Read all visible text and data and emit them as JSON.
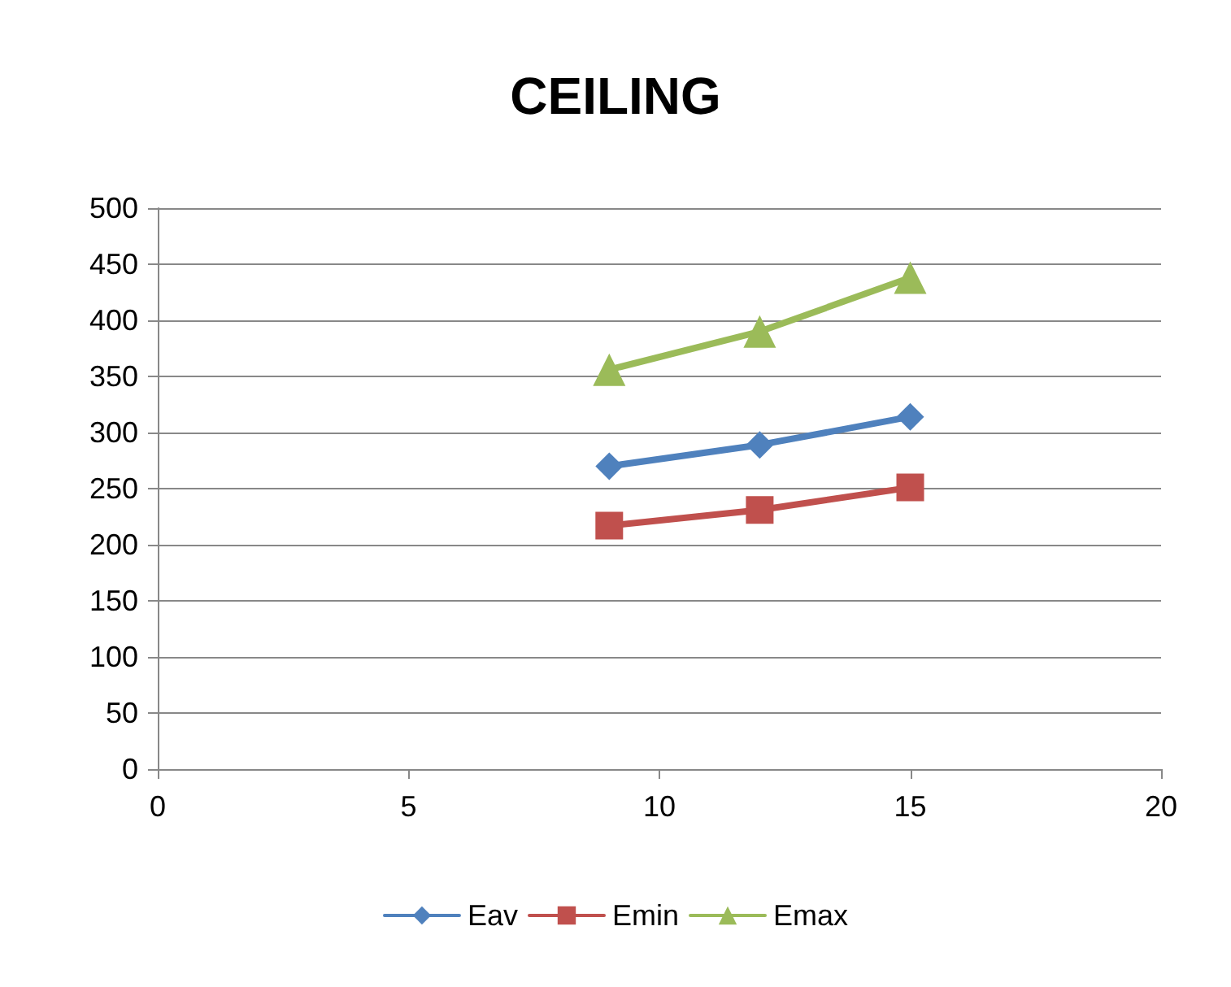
{
  "chart_data": {
    "type": "line",
    "title": "CEILING",
    "xlim": [
      0,
      20
    ],
    "xticks": [
      0,
      5,
      10,
      15,
      20
    ],
    "ylim": [
      0,
      500
    ],
    "yticks": [
      0,
      50,
      100,
      150,
      200,
      250,
      300,
      350,
      400,
      450,
      500
    ],
    "grid": "y",
    "legend": "bottom",
    "series": [
      {
        "name": "Eav",
        "color": "#4f81bd",
        "marker": "diamond",
        "x": [
          9,
          12,
          15
        ],
        "values": [
          270,
          289,
          314
        ]
      },
      {
        "name": "Emin",
        "color": "#c0504d",
        "marker": "square",
        "x": [
          9,
          12,
          15
        ],
        "values": [
          217,
          231,
          251
        ]
      },
      {
        "name": "Emax",
        "color": "#9bbb59",
        "marker": "triangle",
        "x": [
          9,
          12,
          15
        ],
        "values": [
          356,
          390,
          438
        ]
      }
    ]
  }
}
